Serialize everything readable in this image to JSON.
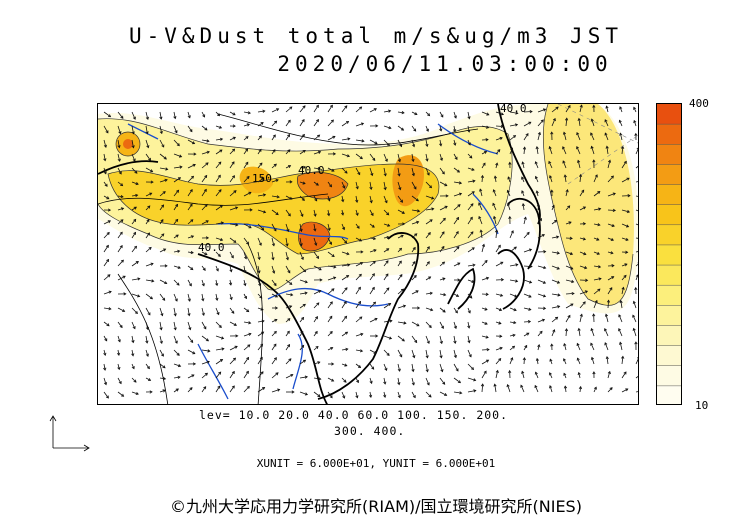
{
  "title": {
    "line1": "U-V&Dust total m/s&ug/m3 JST",
    "line2": "2020/06/11.03:00:00"
  },
  "colorbar": {
    "max_label": "400",
    "min_label": "10",
    "colors": [
      "#e8500f",
      "#ec6a10",
      "#f08412",
      "#f39c14",
      "#f6b416",
      "#f8c41a",
      "#f9d22a",
      "#fae03e",
      "#fbe85c",
      "#fcef7c",
      "#fdf39c",
      "#fdf6b8",
      "#fef9d2",
      "#fefbe4",
      "#fffdf0"
    ]
  },
  "map_labels": {
    "contour_150": "150",
    "contour_40_top": "40.0",
    "contour_40_left": "40.0",
    "contour_40_ne": "40.0"
  },
  "levels": {
    "line1": "lev= 10.0 20.0 40.0 60.0 100. 150. 200.",
    "line2": "300. 400."
  },
  "units": "XUNIT = 6.000E+01, YUNIT = 6.000E+01",
  "copyright": "©九州大学応用力学研究所(RIAM)/国立環境研究所(NIES)"
}
